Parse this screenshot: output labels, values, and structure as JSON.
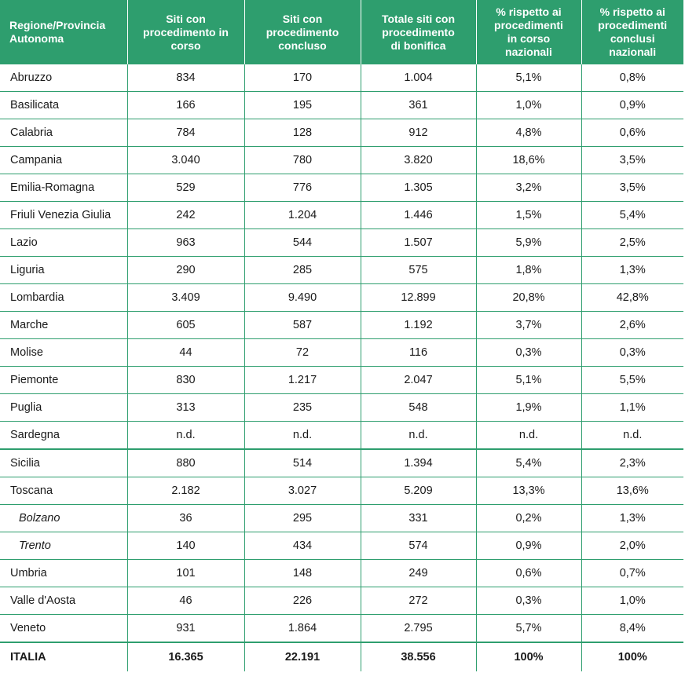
{
  "table": {
    "headers": [
      [
        "Regione/Provincia",
        "Autonoma"
      ],
      [
        "Siti con",
        "procedimento in",
        "corso"
      ],
      [
        "Siti con",
        "procedimento",
        "concluso"
      ],
      [
        "Totale siti con",
        "procedimento",
        "di bonifica"
      ],
      [
        "% rispetto ai",
        "procedimenti",
        "in corso",
        "nazionali"
      ],
      [
        "% rispetto ai",
        "procedimenti",
        "conclusi",
        "nazionali"
      ]
    ],
    "rows": [
      {
        "region": "Abruzzo",
        "in_corso": "834",
        "concluso": "170",
        "totale": "1.004",
        "pct_corso": "5,1%",
        "pct_conclusi": "0,8%"
      },
      {
        "region": "Basilicata",
        "in_corso": "166",
        "concluso": "195",
        "totale": "361",
        "pct_corso": "1,0%",
        "pct_conclusi": "0,9%"
      },
      {
        "region": "Calabria",
        "in_corso": "784",
        "concluso": "128",
        "totale": "912",
        "pct_corso": "4,8%",
        "pct_conclusi": "0,6%"
      },
      {
        "region": "Campania",
        "in_corso": "3.040",
        "concluso": "780",
        "totale": "3.820",
        "pct_corso": "18,6%",
        "pct_conclusi": "3,5%"
      },
      {
        "region": "Emilia-Romagna",
        "in_corso": "529",
        "concluso": "776",
        "totale": "1.305",
        "pct_corso": "3,2%",
        "pct_conclusi": "3,5%"
      },
      {
        "region": "Friuli Venezia Giulia",
        "in_corso": "242",
        "concluso": "1.204",
        "totale": "1.446",
        "pct_corso": "1,5%",
        "pct_conclusi": "5,4%"
      },
      {
        "region": "Lazio",
        "in_corso": "963",
        "concluso": "544",
        "totale": "1.507",
        "pct_corso": "5,9%",
        "pct_conclusi": "2,5%"
      },
      {
        "region": "Liguria",
        "in_corso": "290",
        "concluso": "285",
        "totale": "575",
        "pct_corso": "1,8%",
        "pct_conclusi": "1,3%"
      },
      {
        "region": "Lombardia",
        "in_corso": "3.409",
        "concluso": "9.490",
        "totale": "12.899",
        "pct_corso": "20,8%",
        "pct_conclusi": "42,8%"
      },
      {
        "region": "Marche",
        "in_corso": "605",
        "concluso": "587",
        "totale": "1.192",
        "pct_corso": "3,7%",
        "pct_conclusi": "2,6%"
      },
      {
        "region": "Molise",
        "in_corso": "44",
        "concluso": "72",
        "totale": "116",
        "pct_corso": "0,3%",
        "pct_conclusi": "0,3%"
      },
      {
        "region": "Piemonte",
        "in_corso": "830",
        "concluso": "1.217",
        "totale": "2.047",
        "pct_corso": "5,1%",
        "pct_conclusi": "5,5%"
      },
      {
        "region": "Puglia",
        "in_corso": "313",
        "concluso": "235",
        "totale": "548",
        "pct_corso": "1,9%",
        "pct_conclusi": "1,1%"
      },
      {
        "region": "Sardegna",
        "in_corso": "n.d.",
        "concluso": "n.d.",
        "totale": "n.d.",
        "pct_corso": "n.d.",
        "pct_conclusi": "n.d."
      },
      {
        "region": "Sicilia",
        "in_corso": "880",
        "concluso": "514",
        "totale": "1.394",
        "pct_corso": "5,4%",
        "pct_conclusi": "2,3%"
      },
      {
        "region": "Toscana",
        "in_corso": "2.182",
        "concluso": "3.027",
        "totale": "5.209",
        "pct_corso": "13,3%",
        "pct_conclusi": "13,6%"
      },
      {
        "region": "Bolzano",
        "in_corso": "36",
        "concluso": "295",
        "totale": "331",
        "pct_corso": "0,2%",
        "pct_conclusi": "1,3%",
        "italic": true
      },
      {
        "region": "Trento",
        "in_corso": "140",
        "concluso": "434",
        "totale": "574",
        "pct_corso": "0,9%",
        "pct_conclusi": "2,0%",
        "italic": true
      },
      {
        "region": "Umbria",
        "in_corso": "101",
        "concluso": "148",
        "totale": "249",
        "pct_corso": "0,6%",
        "pct_conclusi": "0,7%"
      },
      {
        "region": "Valle d'Aosta",
        "in_corso": "46",
        "concluso": "226",
        "totale": "272",
        "pct_corso": "0,3%",
        "pct_conclusi": "1,0%"
      },
      {
        "region": "Veneto",
        "in_corso": "931",
        "concluso": "1.864",
        "totale": "2.795",
        "pct_corso": "5,7%",
        "pct_conclusi": "8,4%"
      }
    ],
    "total": {
      "region": "ITALIA",
      "in_corso": "16.365",
      "concluso": "22.191",
      "totale": "38.556",
      "pct_corso": "100%",
      "pct_conclusi": "100%"
    }
  },
  "colors": {
    "header_bg": "#2e9e6e",
    "header_text": "#ffffff",
    "rule": "#2e9e6e"
  }
}
